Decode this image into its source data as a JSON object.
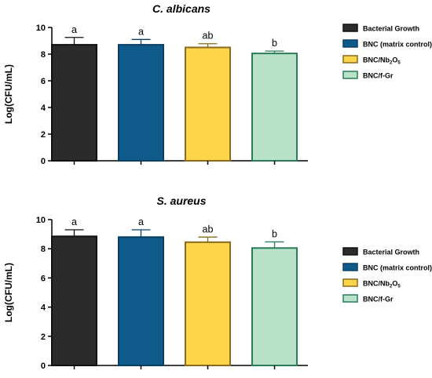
{
  "chart_data": [
    {
      "type": "bar",
      "title": "C. albicans",
      "ylabel": "Log(CFU/mL)",
      "xlabel": "",
      "ylim": [
        0,
        10
      ],
      "yticks": [
        "0",
        "2",
        "4",
        "6",
        "8",
        "10"
      ],
      "categories": [
        {
          "label": "Bacterial Growth",
          "name": "Bacterial Growth"
        },
        {
          "label": "BNC (matrix control)",
          "name": "BNC (matrix control)"
        },
        {
          "label": "BNC/Nb2O5",
          "name": "BNC/Nb",
          "sub1": "2",
          "mid": "O",
          "sub2": "5"
        },
        {
          "label": "BNC/f-Gr",
          "name": "BNC/f-Gr"
        }
      ],
      "values": [
        8.7,
        8.7,
        8.5,
        8.05
      ],
      "errors": [
        0.55,
        0.4,
        0.28,
        0.18
      ],
      "significance": [
        "a",
        "a",
        "ab",
        "b"
      ],
      "colors": [
        "#2b2b2b",
        "#0e5a8a",
        "#fdd54a",
        "#b9e3c9"
      ],
      "edge_colors": [
        "#111111",
        "#0a3f63",
        "#8a6a1e",
        "#2b7a5a"
      ],
      "legend": "right",
      "grid": false
    },
    {
      "type": "bar",
      "title": "S. aureus",
      "ylabel": "Log(CFU/mL)",
      "xlabel": "",
      "ylim": [
        0,
        10
      ],
      "yticks": [
        "0",
        "2",
        "4",
        "6",
        "8",
        "10"
      ],
      "categories": [
        {
          "label": "Bacterial Growth",
          "name": "Bacterial Growth"
        },
        {
          "label": "BNC (matrix control)",
          "name": "BNC (matrix control)"
        },
        {
          "label": "BNC/Nb2O5",
          "name": "BNC/Nb",
          "sub1": "2",
          "mid": "O",
          "sub2": "5"
        },
        {
          "label": "BNC/f-Gr",
          "name": "BNC/f-Gr"
        }
      ],
      "values": [
        8.85,
        8.8,
        8.45,
        8.05
      ],
      "errors": [
        0.45,
        0.5,
        0.35,
        0.42
      ],
      "significance": [
        "a",
        "a",
        "ab",
        "b"
      ],
      "colors": [
        "#2b2b2b",
        "#0e5a8a",
        "#fdd54a",
        "#b9e3c9"
      ],
      "edge_colors": [
        "#111111",
        "#0a3f63",
        "#8a6a1e",
        "#2b7a5a"
      ],
      "legend": "right",
      "grid": false
    }
  ]
}
